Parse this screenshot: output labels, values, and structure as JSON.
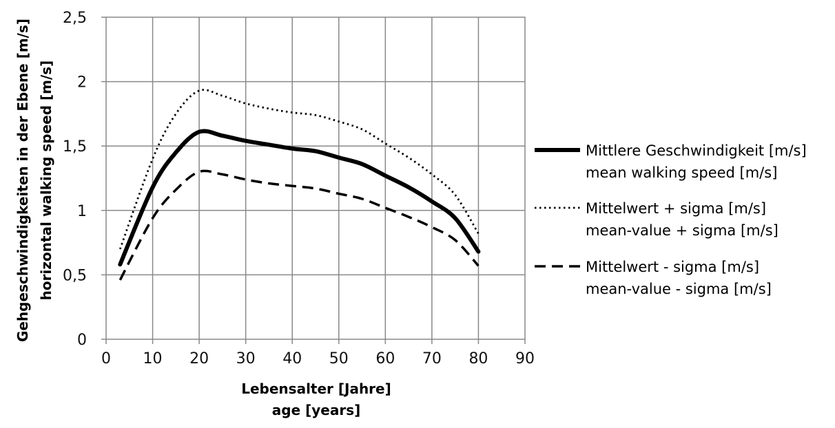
{
  "chart_data": {
    "type": "line",
    "title": "",
    "xlabel": [
      "Lebensalter [Jahre]",
      "age [years]"
    ],
    "ylabel": [
      "Gehgeschwindigkeiten in der Ebene [m/s]",
      "horizontal walking speed [m/s]"
    ],
    "xlim": [
      0,
      90
    ],
    "ylim": [
      0,
      2.5
    ],
    "xticks": [
      0,
      10,
      20,
      30,
      40,
      50,
      60,
      70,
      80,
      90
    ],
    "xtick_labels": [
      "0",
      "10",
      "20",
      "30",
      "40",
      "50",
      "60",
      "70",
      "80",
      "90"
    ],
    "yticks": [
      0,
      0.5,
      1,
      1.5,
      2,
      2.5
    ],
    "ytick_labels": [
      "0",
      "0,5",
      "1",
      "1,5",
      "2",
      "2,5"
    ],
    "grid": true,
    "legend_position": "right",
    "series": [
      {
        "name": [
          "Mittlere Geschwindigkeit [m/s]",
          "mean walking speed [m/s]"
        ],
        "style": "solid",
        "color": "#000000",
        "x": [
          3,
          10,
          15,
          20,
          25,
          30,
          35,
          40,
          45,
          50,
          55,
          60,
          65,
          70,
          75,
          80
        ],
        "y": [
          0.58,
          1.18,
          1.45,
          1.61,
          1.58,
          1.54,
          1.51,
          1.48,
          1.46,
          1.41,
          1.36,
          1.27,
          1.18,
          1.07,
          0.94,
          0.68
        ]
      },
      {
        "name": [
          "Mittelwert + sigma [m/s]",
          "mean-value + sigma [m/s]"
        ],
        "style": "dotted",
        "color": "#000000",
        "x": [
          3,
          10,
          15,
          20,
          25,
          30,
          35,
          40,
          45,
          50,
          55,
          60,
          65,
          70,
          75,
          80
        ],
        "y": [
          0.7,
          1.4,
          1.75,
          1.93,
          1.89,
          1.83,
          1.79,
          1.76,
          1.74,
          1.69,
          1.63,
          1.52,
          1.41,
          1.28,
          1.12,
          0.82
        ]
      },
      {
        "name": [
          "Mittelwert - sigma [m/s]",
          "mean-value - sigma [m/s]"
        ],
        "style": "dashed",
        "color": "#000000",
        "x": [
          3,
          10,
          15,
          20,
          25,
          30,
          35,
          40,
          45,
          50,
          55,
          60,
          65,
          70,
          75,
          80
        ],
        "y": [
          0.46,
          0.94,
          1.16,
          1.3,
          1.28,
          1.24,
          1.21,
          1.19,
          1.17,
          1.13,
          1.09,
          1.02,
          0.95,
          0.87,
          0.77,
          0.57
        ]
      }
    ]
  }
}
